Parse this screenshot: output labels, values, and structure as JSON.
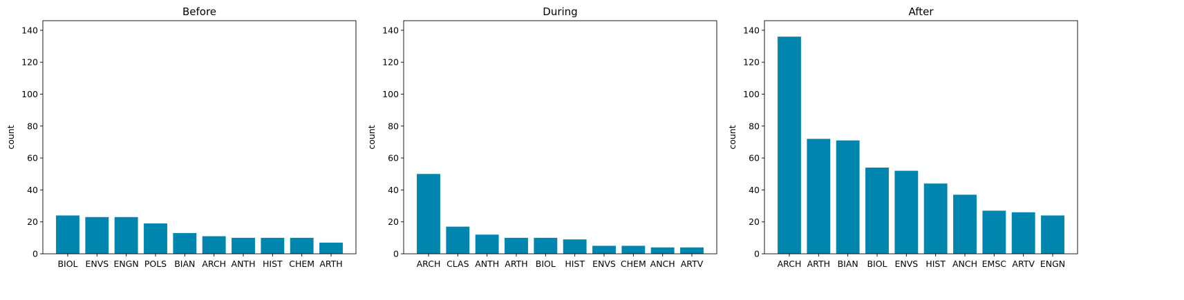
{
  "chart_data": [
    {
      "type": "bar",
      "title": "Before",
      "xlabel": "",
      "ylabel": "count",
      "ylim": [
        0,
        146
      ],
      "yticks": [
        0,
        20,
        40,
        60,
        80,
        100,
        120,
        140
      ],
      "grid": false,
      "categories": [
        "BIOL",
        "ENVS",
        "ENGN",
        "POLS",
        "BIAN",
        "ARCH",
        "ANTH",
        "HIST",
        "CHEM",
        "ARTH"
      ],
      "values": [
        24,
        23,
        23,
        19,
        13,
        11,
        10,
        10,
        10,
        7
      ],
      "color": "#0086ae"
    },
    {
      "type": "bar",
      "title": "During",
      "xlabel": "",
      "ylabel": "count",
      "ylim": [
        0,
        146
      ],
      "yticks": [
        0,
        20,
        40,
        60,
        80,
        100,
        120,
        140
      ],
      "grid": false,
      "categories": [
        "ARCH",
        "CLAS",
        "ANTH",
        "ARTH",
        "BIOL",
        "HIST",
        "ENVS",
        "CHEM",
        "ANCH",
        "ARTV"
      ],
      "values": [
        50,
        17,
        12,
        10,
        10,
        9,
        5,
        5,
        4,
        4
      ],
      "color": "#0086ae"
    },
    {
      "type": "bar",
      "title": "After",
      "xlabel": "",
      "ylabel": "count",
      "ylim": [
        0,
        146
      ],
      "yticks": [
        0,
        20,
        40,
        60,
        80,
        100,
        120,
        140
      ],
      "grid": false,
      "categories": [
        "ARCH",
        "ARTH",
        "BIAN",
        "BIOL",
        "ENVS",
        "HIST",
        "ANCH",
        "EMSC",
        "ARTV",
        "ENGN"
      ],
      "values": [
        136,
        72,
        71,
        54,
        52,
        44,
        37,
        27,
        26,
        24
      ],
      "color": "#0086ae"
    }
  ]
}
